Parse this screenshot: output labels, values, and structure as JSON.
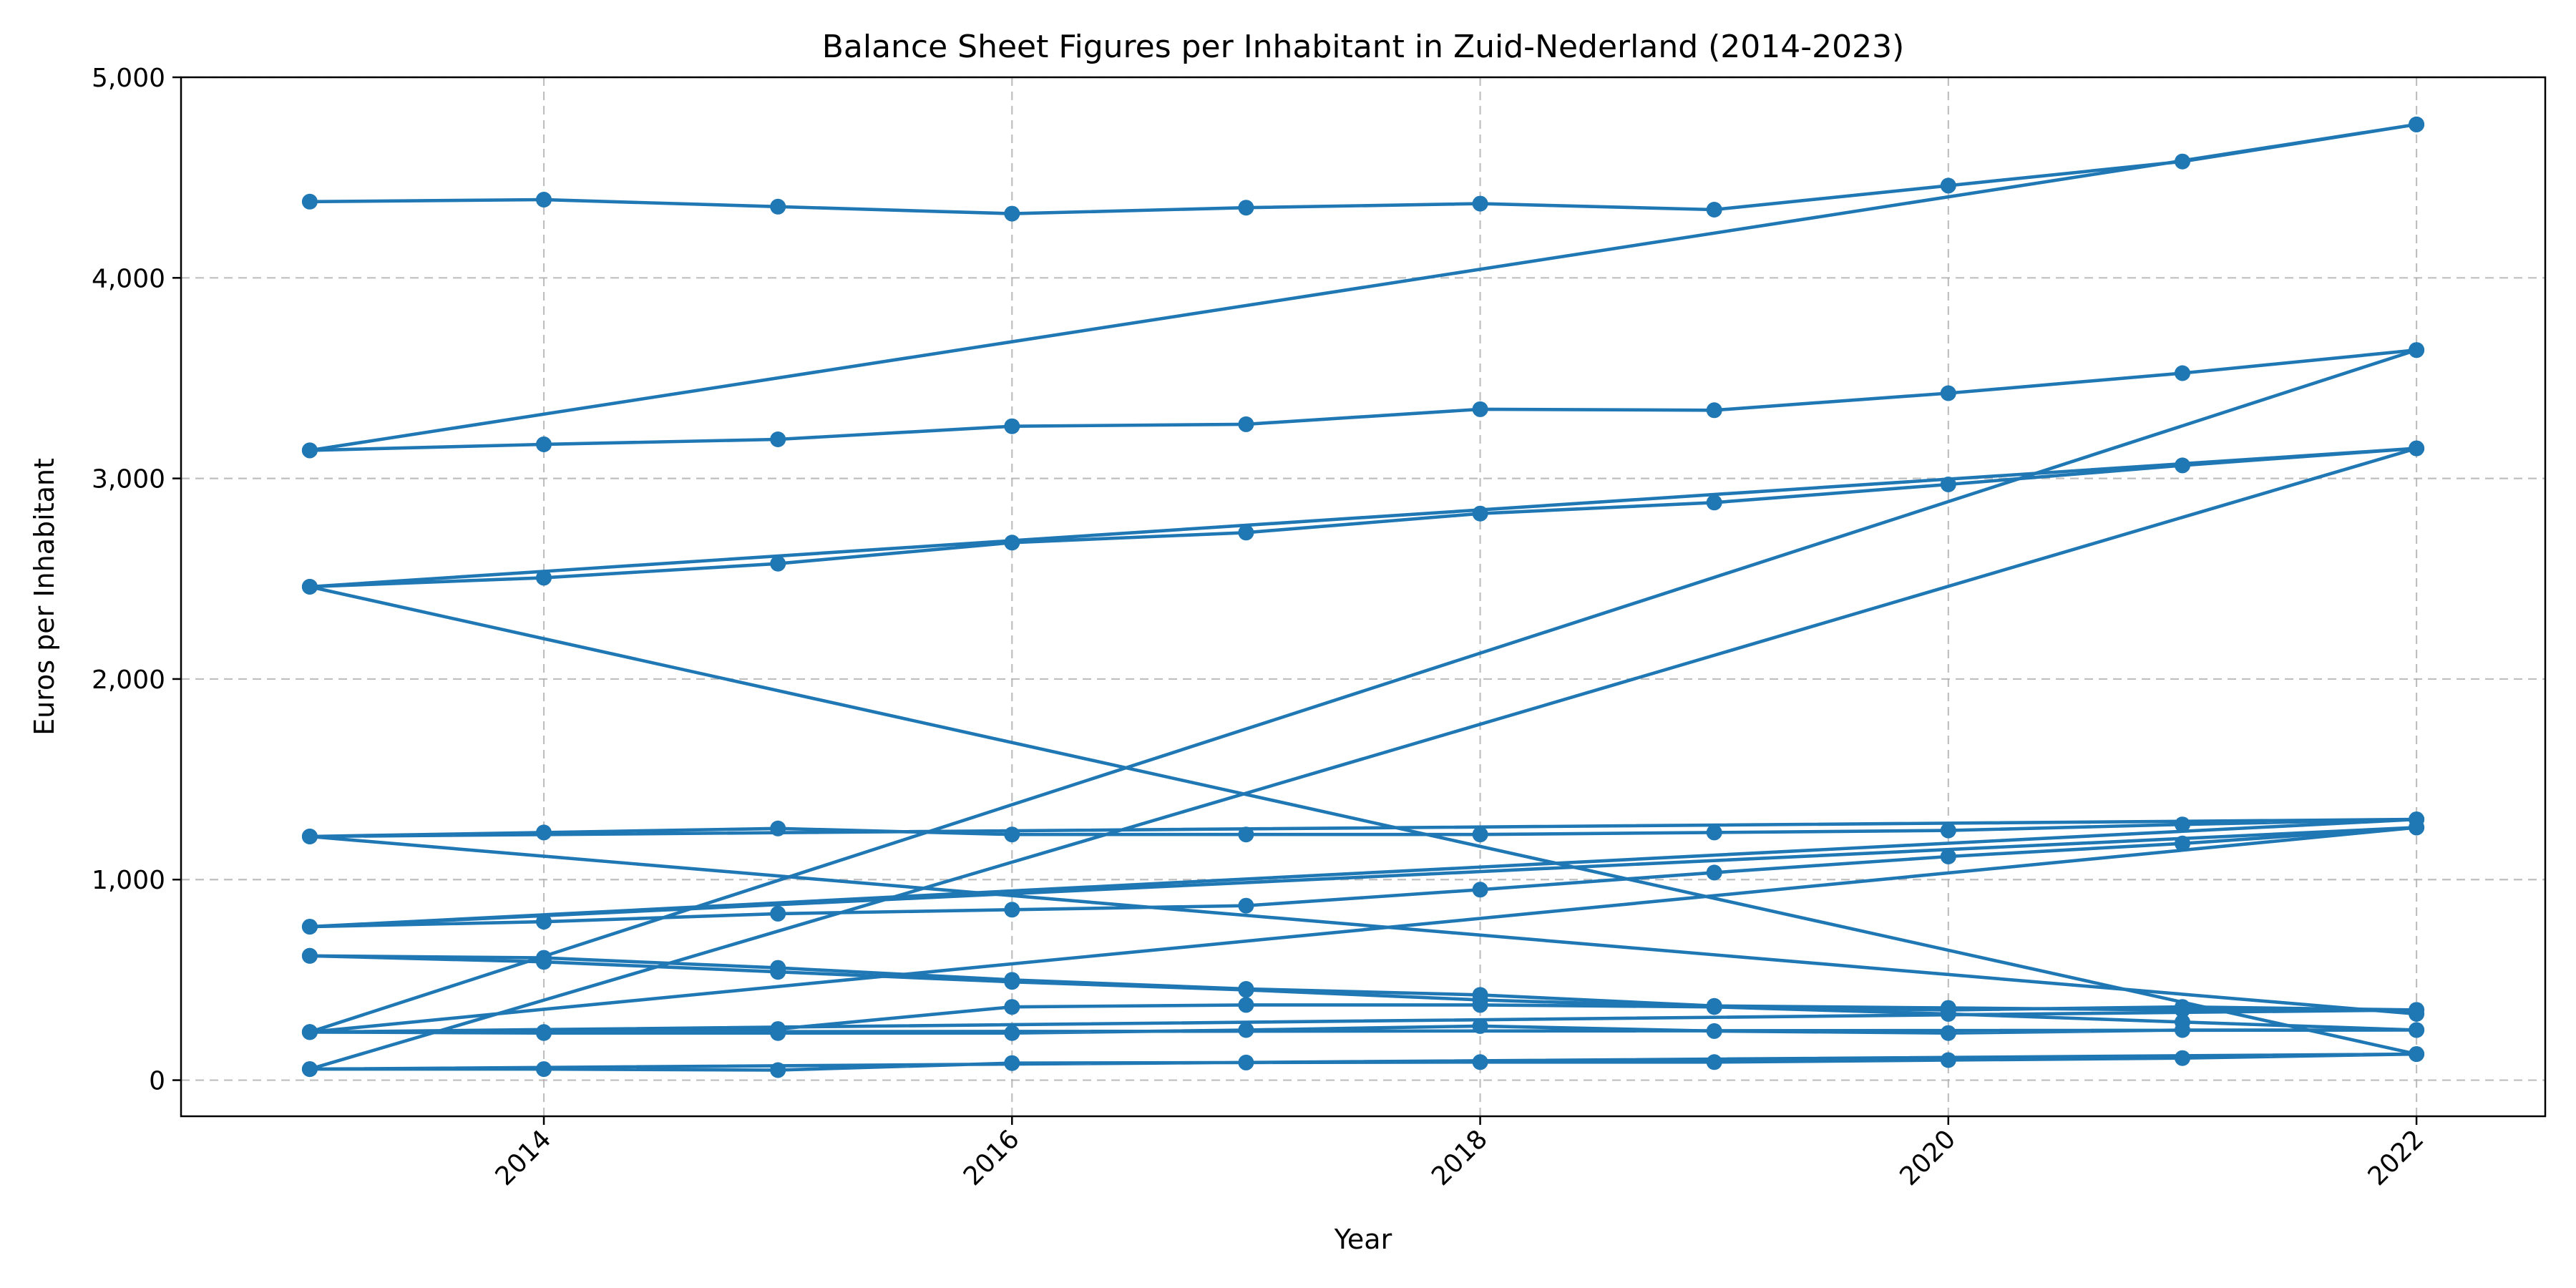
{
  "chart_data": {
    "type": "line",
    "title": "Balance Sheet Figures per Inhabitant in Zuid-Nederland (2014-2023)",
    "xlabel": "Year",
    "ylabel": "Euros per Inhabitant",
    "xlim": [
      2012.45,
      2022.55
    ],
    "ylim": [
      -180,
      5000
    ],
    "x_ticks": [
      2014,
      2016,
      2018,
      2020,
      2022
    ],
    "y_ticks": [
      0,
      1000,
      2000,
      3000,
      4000,
      5000
    ],
    "y_tick_labels": [
      "0",
      "1,000",
      "2,000",
      "3,000",
      "4,000",
      "5,000"
    ],
    "x_tick_rotation": 45,
    "grid": true,
    "legend": "none",
    "color": "#1f77b4",
    "marker": "circle",
    "series": [
      {
        "x": [
          2013,
          2014,
          2015,
          2016,
          2017,
          2018,
          2019,
          2020,
          2021,
          2022,
          2013,
          2022
        ],
        "values": [
          4380,
          4390,
          4355,
          4320,
          4350,
          4370,
          4340,
          4460,
          4580,
          4765,
          3140,
          4765
        ]
      },
      {
        "x": [
          2013,
          2014,
          2015,
          2016,
          2017,
          2018,
          2019,
          2020,
          2021,
          2022
        ],
        "values": [
          3140,
          3170,
          3195,
          3260,
          3270,
          3345,
          3340,
          3425,
          3525,
          3640
        ]
      },
      {
        "x": [
          2013,
          2014,
          2015,
          2016,
          2017,
          2018,
          2019,
          2020,
          2021,
          2022,
          2013,
          2022
        ],
        "values": [
          2460,
          2505,
          2575,
          2680,
          2730,
          2825,
          2880,
          2970,
          3065,
          3150,
          2460,
          130
        ]
      },
      {
        "x": [
          2013,
          2014,
          2015,
          2016,
          2017,
          2018,
          2019,
          2020,
          2021,
          2022,
          2013,
          2022
        ],
        "values": [
          1215,
          1235,
          1255,
          1225,
          1225,
          1225,
          1235,
          1245,
          1275,
          1300,
          1215,
          330
        ]
      },
      {
        "x": [
          2013,
          2014,
          2015,
          2016,
          2017,
          2018,
          2019,
          2020,
          2021,
          2022,
          2013,
          2022
        ],
        "values": [
          765,
          790,
          830,
          850,
          870,
          950,
          1035,
          1115,
          1180,
          1260,
          765,
          1300
        ]
      },
      {
        "x": [
          2013,
          2014,
          2015,
          2016,
          2017,
          2018,
          2019,
          2020,
          2021,
          2022
        ],
        "values": [
          620,
          610,
          560,
          500,
          455,
          425,
          370,
          360,
          350,
          350
        ]
      },
      {
        "x": [
          2013,
          2014,
          2015,
          2016,
          2017,
          2018,
          2019,
          2020,
          2021,
          2022
        ],
        "values": [
          620,
          590,
          540,
          490,
          450,
          400,
          365,
          330,
          290,
          250
        ]
      },
      {
        "x": [
          2013,
          2014,
          2015,
          2016,
          2017,
          2018,
          2019,
          2020,
          2021,
          2022,
          2013,
          2022
        ],
        "values": [
          240,
          240,
          255,
          365,
          375,
          375,
          365,
          350,
          365,
          350,
          240,
          3640
        ]
      },
      {
        "x": [
          2013,
          2014,
          2015,
          2016,
          2017,
          2018,
          2019,
          2020,
          2021,
          2022,
          2013,
          2022
        ],
        "values": [
          240,
          235,
          235,
          235,
          250,
          270,
          245,
          235,
          250,
          250,
          240,
          1260
        ]
      },
      {
        "x": [
          2013,
          2014,
          2015,
          2016,
          2017,
          2018,
          2019,
          2020,
          2021,
          2022,
          2013,
          2022
        ],
        "values": [
          55,
          55,
          50,
          85,
          88,
          90,
          90,
          100,
          110,
          130,
          55,
          3150
        ]
      }
    ]
  }
}
